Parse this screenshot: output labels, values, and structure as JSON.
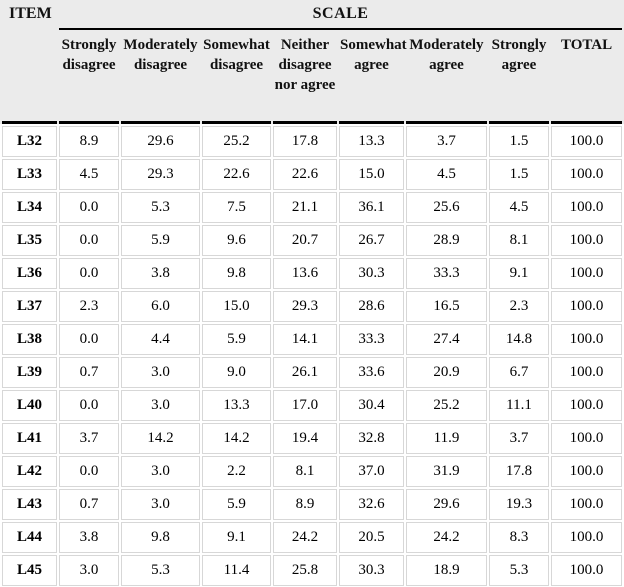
{
  "table": {
    "item_header": "ITEM",
    "scale_header": "SCALE",
    "columns": [
      "Strongly disagree",
      "Moderately disagree",
      "Somewhat disagree",
      "Neither disagree nor agree",
      "Somewhat agree",
      "Moderately agree",
      "Strongly agree",
      "TOTAL"
    ],
    "rows": [
      {
        "item": "L32",
        "values": [
          "8.9",
          "29.6",
          "25.2",
          "17.8",
          "13.3",
          "3.7",
          "1.5",
          "100.0"
        ]
      },
      {
        "item": "L33",
        "values": [
          "4.5",
          "29.3",
          "22.6",
          "22.6",
          "15.0",
          "4.5",
          "1.5",
          "100.0"
        ]
      },
      {
        "item": "L34",
        "values": [
          "0.0",
          "5.3",
          "7.5",
          "21.1",
          "36.1",
          "25.6",
          "4.5",
          "100.0"
        ]
      },
      {
        "item": "L35",
        "values": [
          "0.0",
          "5.9",
          "9.6",
          "20.7",
          "26.7",
          "28.9",
          "8.1",
          "100.0"
        ]
      },
      {
        "item": "L36",
        "values": [
          "0.0",
          "3.8",
          "9.8",
          "13.6",
          "30.3",
          "33.3",
          "9.1",
          "100.0"
        ]
      },
      {
        "item": "L37",
        "values": [
          "2.3",
          "6.0",
          "15.0",
          "29.3",
          "28.6",
          "16.5",
          "2.3",
          "100.0"
        ]
      },
      {
        "item": "L38",
        "values": [
          "0.0",
          "4.4",
          "5.9",
          "14.1",
          "33.3",
          "27.4",
          "14.8",
          "100.0"
        ]
      },
      {
        "item": "L39",
        "values": [
          "0.7",
          "3.0",
          "9.0",
          "26.1",
          "33.6",
          "20.9",
          "6.7",
          "100.0"
        ]
      },
      {
        "item": "L40",
        "values": [
          "0.0",
          "3.0",
          "13.3",
          "17.0",
          "30.4",
          "25.2",
          "11.1",
          "100.0"
        ]
      },
      {
        "item": "L41",
        "values": [
          "3.7",
          "14.2",
          "14.2",
          "19.4",
          "32.8",
          "11.9",
          "3.7",
          "100.0"
        ]
      },
      {
        "item": "L42",
        "values": [
          "0.0",
          "3.0",
          "2.2",
          "8.1",
          "37.0",
          "31.9",
          "17.8",
          "100.0"
        ]
      },
      {
        "item": "L43",
        "values": [
          "0.7",
          "3.0",
          "5.9",
          "8.9",
          "32.6",
          "29.6",
          "19.3",
          "100.0"
        ]
      },
      {
        "item": "L44",
        "values": [
          "3.8",
          "9.8",
          "9.1",
          "24.2",
          "20.5",
          "24.2",
          "8.3",
          "100.0"
        ]
      },
      {
        "item": "L45",
        "values": [
          "3.0",
          "5.3",
          "11.4",
          "25.8",
          "30.3",
          "18.9",
          "5.3",
          "100.0"
        ]
      }
    ]
  },
  "colors": {
    "header_bg": "#ebebeb",
    "grid_line": "#d7d7d7",
    "heavy_line": "#000000"
  }
}
